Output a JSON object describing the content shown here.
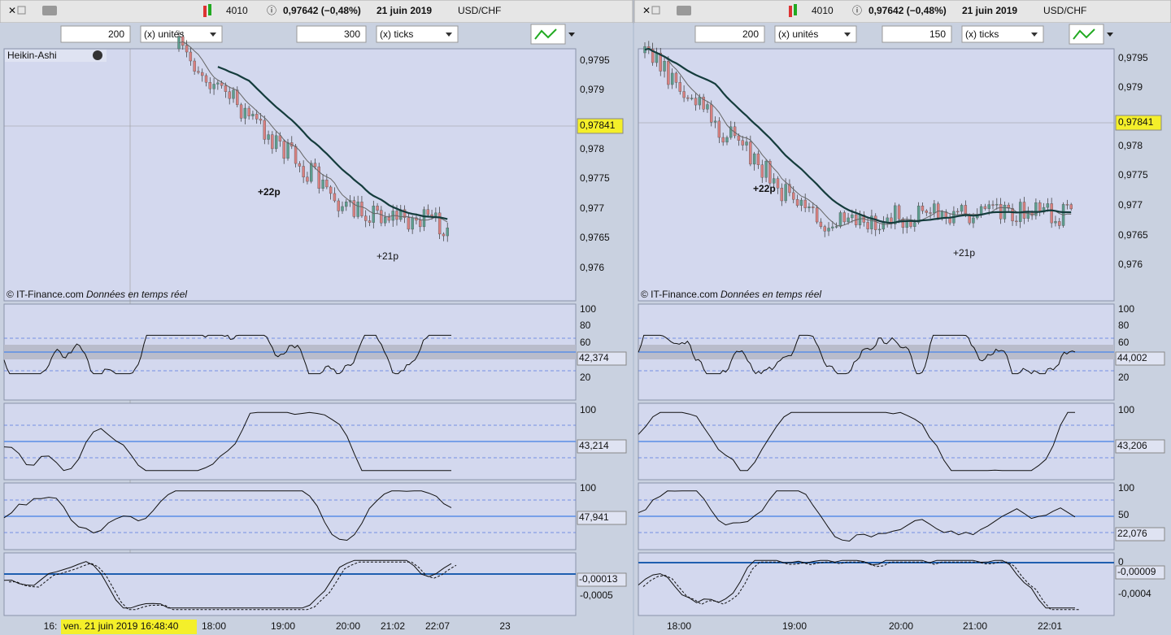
{
  "panels": [
    {
      "header": {
        "count": "4010",
        "price": "0,97642 (−0,48%)",
        "date": "21 juin 2019",
        "pair": "USD/CHF"
      },
      "toolbar": {
        "units_value": "200",
        "units_label": "(x) unités",
        "ticks_value": "300",
        "ticks_label": "(x) ticks"
      },
      "indicator": "Heikin-Ashi",
      "price_axis": [
        "0,9795",
        "0,979",
        "0,978",
        "0,9775",
        "0,977",
        "0,9765",
        "0,976"
      ],
      "price_current": "0,97841",
      "credit": "© IT-Finance.com",
      "credit_note": "Données en temps réel",
      "annotations": [
        "+22p",
        "+21p"
      ],
      "subs": [
        {
          "ticks": [
            "100",
            "80",
            "60",
            "20"
          ],
          "current": "42,374"
        },
        {
          "ticks": [
            "100"
          ],
          "current": "43,214"
        },
        {
          "ticks": [
            "100"
          ],
          "current": "47,941"
        },
        {
          "ticks": [
            "-0,0005"
          ],
          "current": "-0,00013"
        }
      ],
      "time_axis": [
        "16:",
        "18:00",
        "19:00",
        "20:00",
        "21:02",
        "22:07",
        "23"
      ],
      "cursor_time": "ven. 21 juin 2019 16:48:40"
    },
    {
      "header": {
        "count": "4010",
        "price": "0,97642 (−0,48%)",
        "date": "21 juin 2019",
        "pair": "USD/CHF"
      },
      "toolbar": {
        "units_value": "200",
        "units_label": "(x) unités",
        "ticks_value": "150",
        "ticks_label": "(x) ticks"
      },
      "price_axis": [
        "0,9795",
        "0,979",
        "0,978",
        "0,9775",
        "0,977",
        "0,9765",
        "0,976"
      ],
      "price_current": "0,97841",
      "credit": "© IT-Finance.com",
      "credit_note": "Données en temps réel",
      "annotations": [
        "+22p",
        "+21p"
      ],
      "subs": [
        {
          "ticks": [
            "100",
            "80",
            "60",
            "20"
          ],
          "current": "44,002"
        },
        {
          "ticks": [
            "100"
          ],
          "current": "43,206"
        },
        {
          "ticks": [
            "100",
            "50"
          ],
          "current": "22,076"
        },
        {
          "ticks": [
            "0",
            "-0,0004"
          ],
          "current": "-0,00009"
        }
      ],
      "time_axis": [
        "18:00",
        "19:00",
        "20:00",
        "21:00",
        "22:01"
      ]
    }
  ]
}
